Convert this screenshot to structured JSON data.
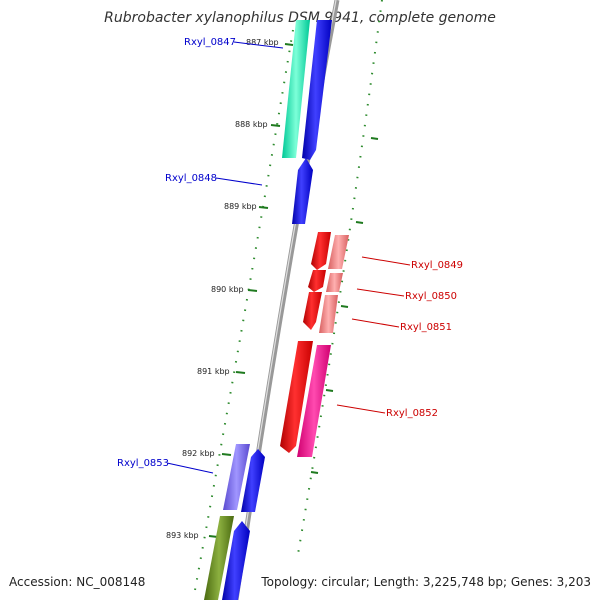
{
  "title": "Rubrobacter xylanophilus DSM 9941, complete genome",
  "accession": "Accession: NC_008148",
  "topology": "Topology: circular; Length: 3,225,748 bp; Genes: 3,203",
  "kbp_labels": [
    "887 kbp",
    "888 kbp",
    "889 kbp",
    "890 kbp",
    "891 kbp",
    "892 kbp",
    "893 kbp"
  ],
  "genes": [
    {
      "name": "Rxyl_0847",
      "strand": "forward",
      "color": "#0000cc"
    },
    {
      "name": "Rxyl_0848",
      "strand": "forward",
      "color": "#0000cc"
    },
    {
      "name": "Rxyl_0849",
      "strand": "reverse",
      "color": "#cc0000"
    },
    {
      "name": "Rxyl_0850",
      "strand": "reverse",
      "color": "#cc0000"
    },
    {
      "name": "Rxyl_0851",
      "strand": "reverse",
      "color": "#cc0000"
    },
    {
      "name": "Rxyl_0852",
      "strand": "reverse",
      "color": "#cc0000"
    },
    {
      "name": "Rxyl_0853",
      "strand": "forward",
      "color": "#0000cc"
    }
  ],
  "colors": {
    "forward_cds": "#0000ff",
    "reverse_cds": "#ff0000",
    "backbone": "#888888",
    "tick_marks": "#228b22",
    "cog_teal": "#1de9b6",
    "cog_pink": "#ff1493",
    "cog_salmon": "#f08080",
    "cog_purple": "#7b68ee",
    "cog_olive": "#6b8e23"
  }
}
